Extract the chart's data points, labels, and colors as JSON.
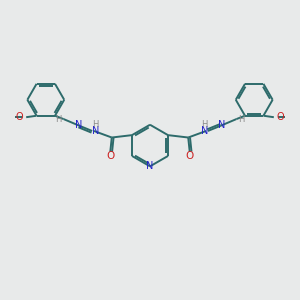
{
  "bg_color": "#e8eaea",
  "bond_color": "#2d6b6b",
  "N_color": "#2222cc",
  "O_color": "#cc2222",
  "H_color": "#888888",
  "lw": 1.4,
  "dbo": 0.06,
  "xlim": [
    0,
    10
  ],
  "ylim": [
    0,
    10
  ]
}
